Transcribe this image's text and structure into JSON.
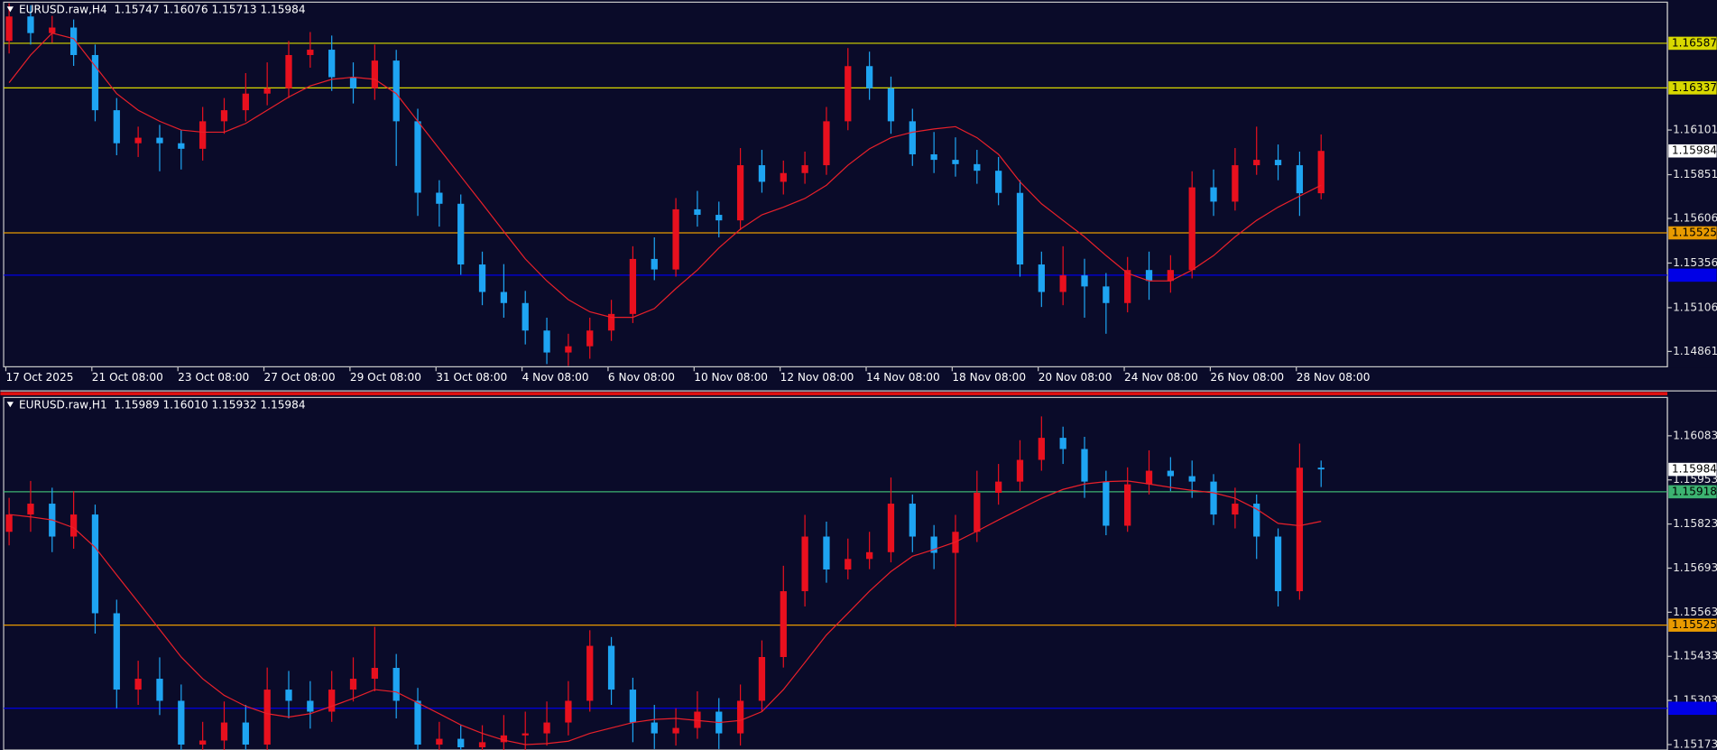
{
  "chart_data": [
    {
      "type": "candlestick",
      "title": "EURUSD.raw,H4  1.15747 1.16076 1.15713 1.15984",
      "categories": [
        "17 Oct 2025",
        null,
        null,
        null,
        "21 Oct 08:00",
        null,
        null,
        null,
        "23 Oct 08:00",
        null,
        null,
        null,
        "27 Oct 08:00",
        null,
        null,
        null,
        "29 Oct 08:00",
        null,
        null,
        null,
        "31 Oct 08:00",
        null,
        null,
        null,
        "4 Nov 08:00",
        null,
        null,
        null,
        "6 Nov 08:00",
        null,
        null,
        null,
        "10 Nov 08:00",
        null,
        null,
        null,
        "12 Nov 08:00",
        null,
        null,
        null,
        "14 Nov 08:00",
        null,
        null,
        null,
        "18 Nov 08:00",
        null,
        null,
        null,
        "20 Nov 08:00",
        null,
        null,
        null,
        "24 Nov 08:00",
        null,
        null,
        null,
        "26 Nov 08:00",
        null,
        null,
        null,
        "28 Nov 08:00",
        null
      ],
      "ohlc": {
        "open": [
          1.166,
          1.16737,
          1.16644,
          1.16675,
          1.16521,
          1.16212,
          1.16027,
          1.16058,
          1.16027,
          1.15996,
          1.1615,
          1.16212,
          1.16305,
          1.16335,
          1.16521,
          1.16551,
          1.16397,
          1.16335,
          1.1649,
          1.1615,
          1.1575,
          1.15688,
          1.15348,
          1.15194,
          1.15132,
          1.14978,
          1.14855,
          1.1489,
          1.14978,
          1.15071,
          1.15379,
          1.1532,
          1.15657,
          1.15626,
          1.15595,
          1.15904,
          1.15811,
          1.1586,
          1.15904,
          1.1615,
          1.16459,
          1.16335,
          1.1615,
          1.15965,
          1.15934,
          1.1591,
          1.15873,
          1.15749,
          1.15348,
          1.15194,
          1.15287,
          1.15225,
          1.15132,
          1.15317,
          1.15256,
          1.15317,
          1.1578,
          1.157,
          1.15904,
          1.15934,
          1.15904,
          1.15747
        ],
        "high": [
          1.1681,
          1.168,
          1.1674,
          1.1672,
          1.1658,
          1.1628,
          1.1612,
          1.1613,
          1.161,
          1.1623,
          1.1628,
          1.1642,
          1.1648,
          1.166,
          1.1665,
          1.1663,
          1.1648,
          1.1658,
          1.1655,
          1.1622,
          1.1582,
          1.1574,
          1.1542,
          1.1535,
          1.152,
          1.1505,
          1.1496,
          1.1505,
          1.1515,
          1.1545,
          1.155,
          1.1572,
          1.1576,
          1.157,
          1.16,
          1.1599,
          1.1593,
          1.1598,
          1.1623,
          1.1656,
          1.1654,
          1.164,
          1.1622,
          1.1609,
          1.1606,
          1.1599,
          1.1595,
          1.1582,
          1.1542,
          1.1545,
          1.1538,
          1.153,
          1.1539,
          1.1542,
          1.154,
          1.1587,
          1.1588,
          1.16,
          1.1612,
          1.1602,
          1.1598,
          1.16076
        ],
        "low": [
          1.1653,
          1.1658,
          1.1659,
          1.1646,
          1.1615,
          1.1596,
          1.1595,
          1.1587,
          1.1588,
          1.1593,
          1.1608,
          1.1615,
          1.1624,
          1.1628,
          1.1645,
          1.1632,
          1.1625,
          1.1627,
          1.159,
          1.1562,
          1.1556,
          1.1529,
          1.1512,
          1.1505,
          1.149,
          1.1479,
          1.1478,
          1.1482,
          1.1492,
          1.1502,
          1.1526,
          1.1528,
          1.1556,
          1.155,
          1.1554,
          1.1575,
          1.1574,
          1.158,
          1.1585,
          1.161,
          1.1627,
          1.1608,
          1.159,
          1.1586,
          1.1584,
          1.158,
          1.1568,
          1.1528,
          1.1511,
          1.1512,
          1.1505,
          1.1496,
          1.1508,
          1.1515,
          1.1519,
          1.1527,
          1.1562,
          1.1565,
          1.1585,
          1.1582,
          1.1562,
          1.15713
        ],
        "close": [
          1.16737,
          1.16644,
          1.16675,
          1.16521,
          1.16212,
          1.16027,
          1.16058,
          1.16027,
          1.15996,
          1.1615,
          1.16212,
          1.16305,
          1.16335,
          1.16521,
          1.16551,
          1.16397,
          1.16335,
          1.1649,
          1.1615,
          1.1575,
          1.15688,
          1.15348,
          1.15194,
          1.15132,
          1.14978,
          1.14855,
          1.1489,
          1.14978,
          1.15071,
          1.15379,
          1.1532,
          1.15657,
          1.15626,
          1.15595,
          1.15904,
          1.15811,
          1.1586,
          1.15904,
          1.1615,
          1.16459,
          1.16335,
          1.1615,
          1.15965,
          1.15934,
          1.1591,
          1.15873,
          1.15749,
          1.15348,
          1.15194,
          1.15287,
          1.15225,
          1.15132,
          1.15317,
          1.15256,
          1.15317,
          1.1578,
          1.157,
          1.15904,
          1.15934,
          1.15904,
          1.15747,
          1.15984
        ]
      },
      "colors": {
        "up": "#e8101e",
        "down": "#1ea4f2"
      },
      "series": [
        {
          "color": "#e8202a",
          "values": [
            1.16366,
            1.16521,
            1.16644,
            1.16613,
            1.16459,
            1.16305,
            1.16212,
            1.1615,
            1.16101,
            1.16089,
            1.16089,
            1.16138,
            1.16212,
            1.16286,
            1.16348,
            1.16385,
            1.16397,
            1.16385,
            1.16305,
            1.1615,
            1.15996,
            1.15842,
            1.15688,
            1.15533,
            1.15379,
            1.15256,
            1.15151,
            1.15083,
            1.15052,
            1.15052,
            1.15101,
            1.15213,
            1.15317,
            1.15441,
            1.15546,
            1.15626,
            1.15669,
            1.15718,
            1.15792,
            1.15904,
            1.15996,
            1.16058,
            1.16089,
            1.16107,
            1.1612,
            1.16058,
            1.15965,
            1.15811,
            1.15688,
            1.15595,
            1.15503,
            1.15398,
            1.15299,
            1.15256,
            1.15256,
            1.15317,
            1.15398,
            1.15503,
            1.15595,
            1.15669,
            1.15731,
            1.15792
          ]
        }
      ],
      "levels": [
        {
          "value": 1.16587,
          "color": "#d8d800",
          "show_label": true
        },
        {
          "value": 1.16337,
          "color": "#d8d800",
          "show_label": true
        },
        {
          "value": 1.15525,
          "color": "#e89a00",
          "show_label": true
        },
        {
          "value": 1.15288,
          "color": "#0000e6",
          "show_label": false
        }
      ],
      "ylim": [
        1.14775,
        1.16817
      ],
      "yticks": [
        1.16101,
        1.15851,
        1.15606,
        1.15356,
        1.15106,
        1.14861
      ]
    },
    {
      "type": "candlestick",
      "title": "EURUSD.raw,H1  1.15989 1.16010 1.15932 1.15984",
      "ohlc": {
        "open": [
          1.158,
          1.15851,
          1.15883,
          1.15786,
          1.15851,
          1.1556,
          1.15335,
          1.15367,
          1.15302,
          1.15173,
          1.15185,
          1.15238,
          1.15173,
          1.15335,
          1.15302,
          1.1527,
          1.15335,
          1.15367,
          1.15399,
          1.15302,
          1.15173,
          1.1519,
          1.15165,
          1.1518,
          1.152,
          1.15206,
          1.15238,
          1.15302,
          1.15464,
          1.15335,
          1.15238,
          1.15206,
          1.15222,
          1.1527,
          1.15206,
          1.15302,
          1.15431,
          1.15625,
          1.15786,
          1.15689,
          1.1572,
          1.1574,
          1.15883,
          1.15786,
          1.15738,
          1.158,
          1.15915,
          1.15948,
          1.16012,
          1.16077,
          1.16044,
          1.15948,
          1.15818,
          1.1594,
          1.1598,
          1.15964,
          1.15948,
          1.15851,
          1.15883,
          1.15786,
          1.15625,
          1.15989
        ],
        "high": [
          1.159,
          1.1595,
          1.1593,
          1.1592,
          1.1588,
          1.156,
          1.1542,
          1.1543,
          1.1535,
          1.1524,
          1.153,
          1.1529,
          1.154,
          1.1539,
          1.1536,
          1.1539,
          1.1543,
          1.1552,
          1.1544,
          1.1534,
          1.1524,
          1.1523,
          1.1523,
          1.1526,
          1.1527,
          1.153,
          1.1536,
          1.1551,
          1.1549,
          1.1537,
          1.1529,
          1.1528,
          1.1533,
          1.1531,
          1.1535,
          1.1548,
          1.157,
          1.1585,
          1.1583,
          1.1578,
          1.158,
          1.1596,
          1.1591,
          1.1582,
          1.1585,
          1.1598,
          1.16,
          1.1607,
          1.1614,
          1.1611,
          1.1608,
          1.1598,
          1.1599,
          1.1604,
          1.1602,
          1.1601,
          1.1597,
          1.1593,
          1.1591,
          1.1581,
          1.1606,
          1.1601
        ],
        "low": [
          1.1576,
          1.158,
          1.1574,
          1.1575,
          1.155,
          1.1528,
          1.1529,
          1.1526,
          1.1513,
          1.1512,
          1.1515,
          1.1513,
          1.1515,
          1.1525,
          1.1522,
          1.1524,
          1.153,
          1.1533,
          1.1525,
          1.1513,
          1.1512,
          1.1511,
          1.1512,
          1.1514,
          1.1515,
          1.1517,
          1.152,
          1.1527,
          1.1529,
          1.1518,
          1.1516,
          1.1517,
          1.1519,
          1.1516,
          1.1517,
          1.1527,
          1.154,
          1.1558,
          1.1565,
          1.1566,
          1.1569,
          1.1571,
          1.1574,
          1.1569,
          1.1552,
          1.1577,
          1.1588,
          1.1592,
          1.1598,
          1.16,
          1.159,
          1.1579,
          1.158,
          1.1591,
          1.1592,
          1.159,
          1.1582,
          1.1581,
          1.1572,
          1.1558,
          1.156,
          1.15932
        ],
        "close": [
          1.15851,
          1.15883,
          1.15786,
          1.15851,
          1.1556,
          1.15335,
          1.15367,
          1.15302,
          1.15173,
          1.15185,
          1.15238,
          1.15173,
          1.15335,
          1.15302,
          1.1527,
          1.15335,
          1.15367,
          1.15399,
          1.15302,
          1.15173,
          1.1519,
          1.15165,
          1.1518,
          1.152,
          1.15206,
          1.15238,
          1.15302,
          1.15464,
          1.15335,
          1.15238,
          1.15206,
          1.15222,
          1.1527,
          1.15206,
          1.15302,
          1.15431,
          1.15625,
          1.15786,
          1.15689,
          1.1572,
          1.1574,
          1.15883,
          1.15786,
          1.15738,
          1.158,
          1.15915,
          1.15948,
          1.16012,
          1.16077,
          1.16044,
          1.15948,
          1.15818,
          1.1594,
          1.1598,
          1.15964,
          1.15948,
          1.15851,
          1.15883,
          1.15786,
          1.15625,
          1.15989,
          1.15984
        ]
      },
      "colors": {
        "up": "#e8101e",
        "down": "#1ea4f2"
      },
      "series": [
        {
          "color": "#e8202a",
          "values": [
            1.15851,
            1.15844,
            1.15835,
            1.15812,
            1.15754,
            1.15673,
            1.15593,
            1.15512,
            1.15431,
            1.15367,
            1.15318,
            1.15286,
            1.15264,
            1.15254,
            1.15264,
            1.15286,
            1.15309,
            1.15335,
            1.15328,
            1.15296,
            1.15264,
            1.15231,
            1.15206,
            1.15186,
            1.15173,
            1.15176,
            1.15183,
            1.15206,
            1.15222,
            1.15238,
            1.15247,
            1.1525,
            1.15244,
            1.15238,
            1.15244,
            1.1527,
            1.15335,
            1.15415,
            1.15496,
            1.1556,
            1.15625,
            1.15683,
            1.15728,
            1.15748,
            1.1577,
            1.15802,
            1.15835,
            1.15867,
            1.15899,
            1.15925,
            1.15941,
            1.15948,
            1.1595,
            1.15941,
            1.15931,
            1.15922,
            1.15915,
            1.15899,
            1.15867,
            1.15825,
            1.15818,
            1.15831
          ]
        }
      ],
      "levels": [
        {
          "value": 1.15918,
          "color": "#3cb371",
          "show_label": true
        },
        {
          "value": 1.15525,
          "color": "#e89a00",
          "show_label": true
        },
        {
          "value": 1.1528,
          "color": "#0000e6",
          "show_label": false
        }
      ],
      "ylim": [
        1.15157,
        1.16196
      ],
      "yticks": [
        1.16083,
        1.15953,
        1.15823,
        1.15693,
        1.15563,
        1.15433,
        1.15303,
        1.15173
      ]
    }
  ]
}
